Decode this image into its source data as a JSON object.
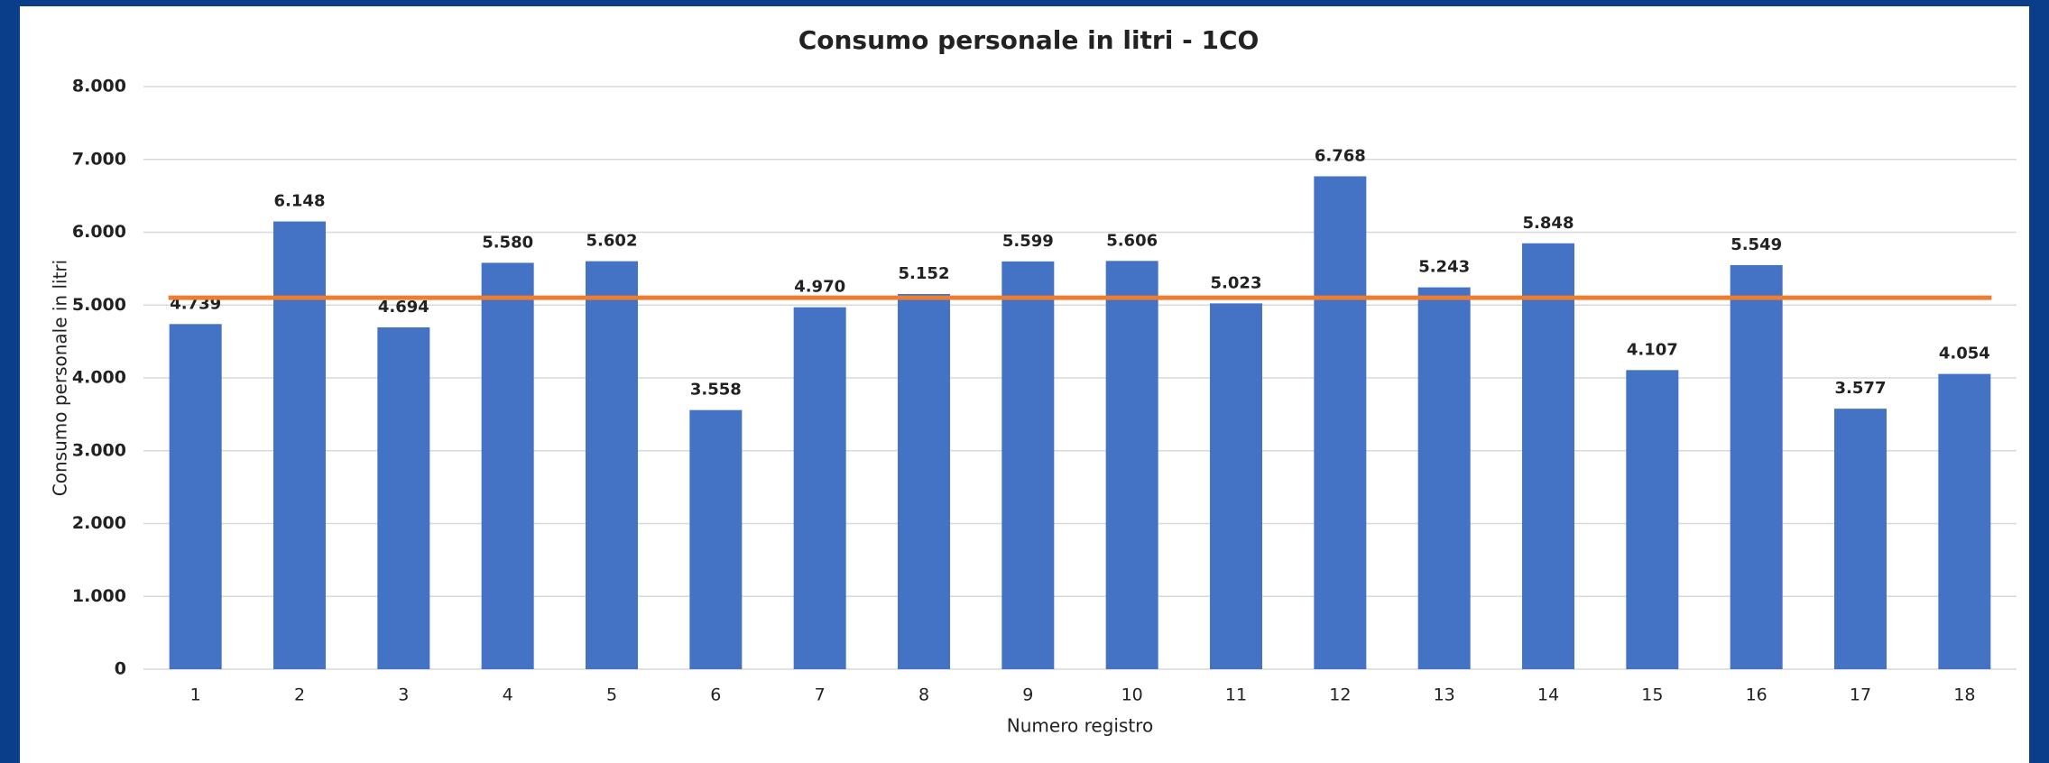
{
  "chart_data": {
    "type": "bar",
    "title": "Consumo personale in litri - 1CO",
    "x_label": "Numero registro",
    "y_label": "Consumo personale in litri",
    "categories": [
      "1",
      "2",
      "3",
      "4",
      "5",
      "6",
      "7",
      "8",
      "9",
      "10",
      "11",
      "12",
      "13",
      "14",
      "15",
      "16",
      "17",
      "18"
    ],
    "values": [
      4739,
      6148,
      4694,
      5580,
      5602,
      3558,
      4970,
      5152,
      5599,
      5606,
      5023,
      6768,
      5243,
      5848,
      4107,
      5549,
      3577,
      4054
    ],
    "value_labels": [
      "4.739",
      "6.148",
      "4.694",
      "5.580",
      "5.602",
      "3.558",
      "4.970",
      "5.152",
      "5.599",
      "5.606",
      "5.023",
      "6.768",
      "5.243",
      "5.848",
      "4.107",
      "5.549",
      "3.577",
      "4.054"
    ],
    "color": "#4472c4",
    "average_line": {
      "value": 5101,
      "color": "#ed7d31"
    },
    "ylim": [
      0,
      8000
    ],
    "yticks": [
      0,
      {
        "value": 1000,
        "label": "1.000"
      },
      {
        "value": 2000,
        "label": "2.000"
      },
      {
        "value": 3000,
        "label": "3.000"
      },
      {
        "value": 4000,
        "label": "4.000"
      },
      {
        "value": 5000,
        "label": "5.000"
      },
      {
        "value": 6000,
        "label": "6.000"
      },
      {
        "value": 7000,
        "label": "7.000"
      },
      {
        "value": 8000,
        "label": "8.000"
      }
    ],
    "grid": true
  }
}
